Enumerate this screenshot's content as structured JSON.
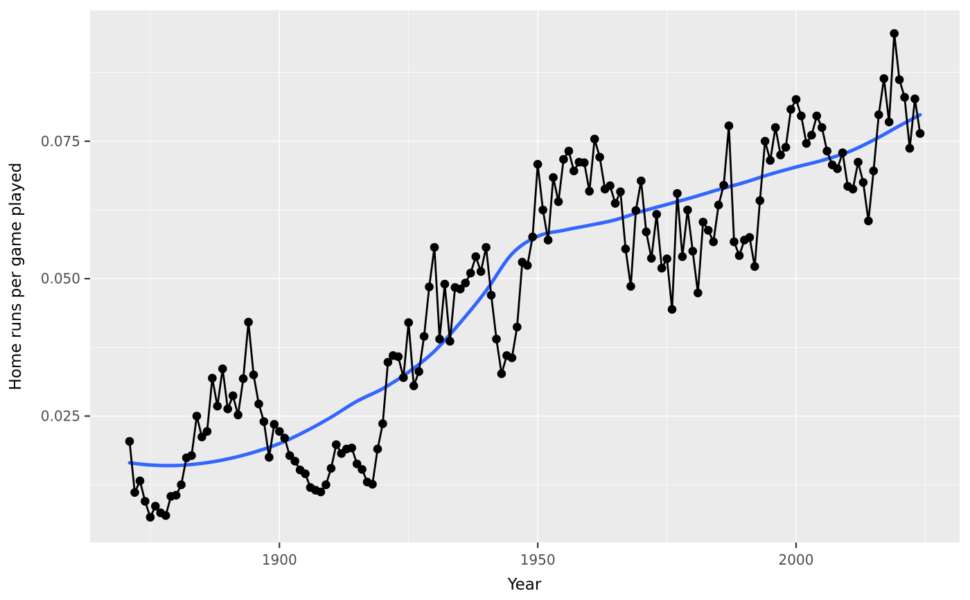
{
  "chart_data": {
    "type": "scatter+line with loess smooth",
    "title": "",
    "xlabel": "Year",
    "ylabel": "Home runs per game played",
    "x_axis": {
      "major_ticks": [
        1900,
        1950,
        2000
      ],
      "major_tick_labels": [
        "1900",
        "1950",
        "2000"
      ],
      "minor_ticks": [
        1875,
        1925,
        1975,
        2025
      ],
      "panel_range": [
        1863.35,
        2031.65
      ]
    },
    "y_axis": {
      "major_ticks": [
        0.025,
        0.05,
        0.075
      ],
      "major_tick_labels": [
        "0.025",
        "0.050",
        "0.075"
      ],
      "minor_ticks": [
        0.0125,
        0.0375,
        0.0625,
        0.0875
      ],
      "panel_range": [
        0.002,
        0.0988
      ]
    },
    "grid": {
      "show_major": true,
      "show_minor": true,
      "color": "#ffffff"
    },
    "legend": "none",
    "colors": {
      "panel_background": "#EBEBEB",
      "gridline": "#FFFFFF",
      "points_and_line": "#000000",
      "smooth_line": "#3366FF",
      "tick_label": "#4D4D4D",
      "axis_title": "#000000",
      "tick_mark": "#333333"
    },
    "series": {
      "name": "home-runs-per-game",
      "x": [
        1871,
        1872,
        1873,
        1874,
        1875,
        1876,
        1877,
        1878,
        1879,
        1880,
        1881,
        1882,
        1883,
        1884,
        1885,
        1886,
        1887,
        1888,
        1889,
        1890,
        1891,
        1892,
        1893,
        1894,
        1895,
        1896,
        1897,
        1898,
        1899,
        1900,
        1901,
        1902,
        1903,
        1904,
        1905,
        1906,
        1907,
        1908,
        1909,
        1910,
        1911,
        1912,
        1913,
        1914,
        1915,
        1916,
        1917,
        1918,
        1919,
        1920,
        1921,
        1922,
        1923,
        1924,
        1925,
        1926,
        1927,
        1928,
        1929,
        1930,
        1931,
        1932,
        1933,
        1934,
        1935,
        1936,
        1937,
        1938,
        1939,
        1940,
        1941,
        1942,
        1943,
        1944,
        1945,
        1946,
        1947,
        1948,
        1949,
        1950,
        1951,
        1952,
        1953,
        1954,
        1955,
        1956,
        1957,
        1958,
        1959,
        1960,
        1961,
        1962,
        1963,
        1964,
        1965,
        1966,
        1967,
        1968,
        1969,
        1970,
        1971,
        1972,
        1973,
        1974,
        1975,
        1976,
        1977,
        1978,
        1979,
        1980,
        1981,
        1982,
        1983,
        1984,
        1985,
        1986,
        1987,
        1988,
        1989,
        1990,
        1991,
        1992,
        1993,
        1994,
        1995,
        1996,
        1997,
        1998,
        1999,
        2000,
        2001,
        2002,
        2003,
        2004,
        2005,
        2006,
        2007,
        2008,
        2009,
        2010,
        2011,
        2012,
        2013,
        2014,
        2015,
        2016,
        2017,
        2018,
        2019,
        2020,
        2021,
        2022,
        2023,
        2024
      ],
      "y": [
        0.0204,
        0.0111,
        0.0132,
        0.0095,
        0.0066,
        0.0086,
        0.0074,
        0.0069,
        0.0104,
        0.0106,
        0.0125,
        0.0174,
        0.0178,
        0.025,
        0.0212,
        0.0222,
        0.0319,
        0.0268,
        0.0336,
        0.0263,
        0.0287,
        0.0252,
        0.0318,
        0.0421,
        0.0325,
        0.0272,
        0.024,
        0.0175,
        0.0235,
        0.0222,
        0.021,
        0.0178,
        0.0168,
        0.0152,
        0.0145,
        0.012,
        0.0115,
        0.0112,
        0.0125,
        0.0155,
        0.0198,
        0.0182,
        0.019,
        0.0192,
        0.0163,
        0.0153,
        0.013,
        0.0126,
        0.019,
        0.0236,
        0.0348,
        0.036,
        0.0358,
        0.032,
        0.042,
        0.0305,
        0.0331,
        0.0395,
        0.0485,
        0.0557,
        0.039,
        0.049,
        0.0386,
        0.0484,
        0.0481,
        0.0492,
        0.051,
        0.054,
        0.0513,
        0.0557,
        0.047,
        0.039,
        0.0327,
        0.036,
        0.0356,
        0.0412,
        0.053,
        0.0524,
        0.0576,
        0.0708,
        0.0625,
        0.057,
        0.0684,
        0.064,
        0.0717,
        0.0732,
        0.0696,
        0.0712,
        0.0711,
        0.0659,
        0.0754,
        0.0721,
        0.0663,
        0.0669,
        0.0637,
        0.0658,
        0.0554,
        0.0486,
        0.0624,
        0.0678,
        0.0585,
        0.0537,
        0.0617,
        0.0519,
        0.0536,
        0.0444,
        0.0655,
        0.054,
        0.0625,
        0.055,
        0.0474,
        0.0603,
        0.0588,
        0.0567,
        0.0634,
        0.067,
        0.0778,
        0.0567,
        0.0542,
        0.057,
        0.0575,
        0.0522,
        0.0642,
        0.075,
        0.0715,
        0.0775,
        0.0725,
        0.0739,
        0.0808,
        0.0826,
        0.0796,
        0.0746,
        0.0761,
        0.0796,
        0.0775,
        0.0732,
        0.0707,
        0.07,
        0.0729,
        0.0668,
        0.0663,
        0.0712,
        0.0675,
        0.0605,
        0.0696,
        0.0798,
        0.0864,
        0.0785,
        0.0946,
        0.0862,
        0.083,
        0.0737,
        0.0827,
        0.0764
      ]
    },
    "smooth": {
      "name": "loess-smooth",
      "x": [
        1871,
        1875,
        1880,
        1885,
        1890,
        1895,
        1900,
        1905,
        1910,
        1915,
        1920,
        1925,
        1930,
        1935,
        1940,
        1945,
        1950,
        1955,
        1960,
        1965,
        1970,
        1975,
        1980,
        1985,
        1990,
        1995,
        2000,
        2005,
        2010,
        2015,
        2020,
        2024
      ],
      "y": [
        0.0165,
        0.0161,
        0.016,
        0.0164,
        0.0172,
        0.0184,
        0.02,
        0.0222,
        0.0248,
        0.0277,
        0.03,
        0.033,
        0.0368,
        0.042,
        0.0478,
        0.0545,
        0.0577,
        0.0588,
        0.0597,
        0.0607,
        0.0622,
        0.0635,
        0.0648,
        0.0662,
        0.0675,
        0.069,
        0.0703,
        0.0715,
        0.073,
        0.0752,
        0.0778,
        0.0798
      ]
    }
  }
}
